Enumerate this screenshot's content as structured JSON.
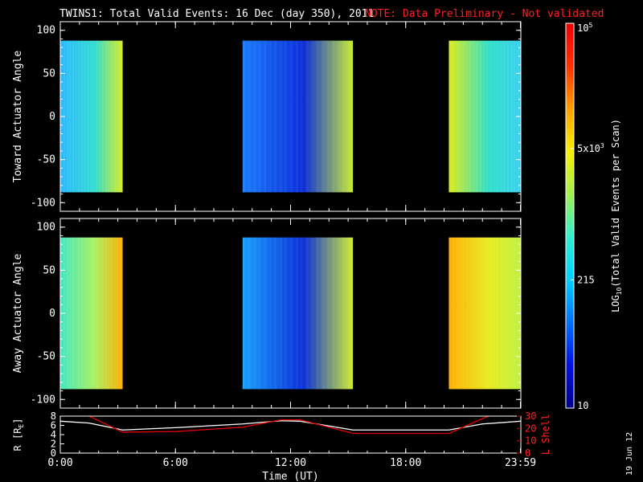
{
  "header": {
    "title": "TWINS1: Total Valid Events: 16 Dec (day 350), 2011",
    "note": "NOTE: Data Preliminary - Not validated"
  },
  "footer": {
    "date_stamp": "19 Jun 12"
  },
  "colors": {
    "background": "#000000",
    "foreground": "#ffffff",
    "note": "#ff2020",
    "lshell": "#e00000",
    "radius": "#ffffff"
  },
  "chart_data": [
    {
      "type": "heatmap",
      "panel": "toward",
      "ylabel": "Toward Actuator Angle",
      "ylim": [
        -110,
        110
      ],
      "yticks": [
        "100",
        "50",
        "0",
        "-50",
        "-100"
      ],
      "ytick_values": [
        100,
        50,
        0,
        -50,
        -100
      ],
      "xlim": [
        0,
        24
      ],
      "angle_range": [
        -88,
        88
      ],
      "data_blocks": [
        {
          "start_hour": 0.0,
          "end_hour": 3.25,
          "left_color": "#2ab8ff",
          "mid_color": "#30dcd0",
          "right_color": "#d8ec20"
        },
        {
          "start_hour": 9.5,
          "end_hour": 15.25,
          "left_color": "#1a7cff",
          "mid_color": "#0b2ed8",
          "right_color": "#c8ec30"
        },
        {
          "start_hour": 20.25,
          "end_hour": 23.98,
          "left_color": "#dcec18",
          "mid_color": "#30e0c8",
          "right_color": "#38d0ee"
        }
      ]
    },
    {
      "type": "heatmap",
      "panel": "away",
      "ylabel": "Away Actuator Angle",
      "ylim": [
        -110,
        110
      ],
      "yticks": [
        "100",
        "50",
        "0",
        "-50",
        "-100"
      ],
      "ytick_values": [
        100,
        50,
        0,
        -50,
        -100
      ],
      "xlim": [
        0,
        24
      ],
      "angle_range": [
        -88,
        88
      ],
      "data_blocks": [
        {
          "start_hour": 0.0,
          "end_hour": 3.25,
          "left_color": "#40e8c0",
          "mid_color": "#a8f060",
          "right_color": "#ffb000"
        },
        {
          "start_hour": 9.5,
          "end_hour": 15.25,
          "left_color": "#18a0ff",
          "mid_color": "#0b30d8",
          "right_color": "#d0ec30"
        },
        {
          "start_hour": 20.25,
          "end_hour": 23.98,
          "left_color": "#ffb000",
          "mid_color": "#e8ec20",
          "right_color": "#c0f040"
        }
      ]
    },
    {
      "type": "line",
      "panel": "orbit",
      "ylabel_left": "R [R",
      "ylabel_left_sub": "E",
      "ylabel_left_close": "]",
      "ylabel_right": "L Shell",
      "ylim_left": [
        0,
        8
      ],
      "ylim_right": [
        0,
        30
      ],
      "yticks_left": [
        "8",
        "6",
        "4",
        "2",
        "0"
      ],
      "ytick_values_left": [
        8,
        6,
        4,
        2,
        0
      ],
      "yticks_right": [
        "30",
        "20",
        "10",
        "0"
      ],
      "ytick_values_right": [
        30,
        20,
        10,
        0
      ],
      "xlim": [
        0,
        24
      ],
      "xlabel": "Time (UT)",
      "xticks": [
        "0:00",
        "6:00",
        "12:00",
        "18:00",
        "23:59"
      ],
      "xtick_values": [
        0,
        6,
        12,
        18,
        23.98
      ],
      "series": [
        {
          "axis": "left",
          "x": [
            0,
            1.5,
            3.25,
            6,
            9.5,
            11.5,
            12.5,
            15.25,
            18,
            20.25,
            22,
            23.98
          ],
          "y": [
            6.9,
            6.5,
            5.0,
            5.5,
            6.3,
            7.0,
            6.9,
            5.0,
            5.0,
            5.0,
            6.3,
            6.9
          ]
        },
        {
          "axis": "right",
          "x": [
            1.5,
            3.25,
            6,
            9.5,
            11.5,
            12.5,
            15.25,
            18,
            20.25,
            22.3
          ],
          "y": [
            30,
            17,
            17.5,
            21,
            27,
            27,
            16,
            16,
            16,
            30
          ]
        }
      ]
    },
    {
      "type": "colorbar",
      "panel": "colorbar",
      "label_text": "LOG",
      "label_sub": "10",
      "label_rest": "(Total Valid Events per Scan)",
      "scale": "log",
      "range": [
        10,
        100000
      ],
      "ticks": [
        {
          "value": 100000,
          "base": "10",
          "exp": "5"
        },
        {
          "value": 5000,
          "base": "5x10",
          "exp": "3"
        },
        {
          "value": 215,
          "base": "215",
          "exp": ""
        },
        {
          "value": 10,
          "base": "10",
          "exp": ""
        }
      ],
      "colors": [
        "#00008c",
        "#0010e0",
        "#0070ff",
        "#00d0ff",
        "#30f0d0",
        "#a0f050",
        "#f8f000",
        "#ffa000",
        "#ff3000",
        "#f00000"
      ]
    }
  ]
}
